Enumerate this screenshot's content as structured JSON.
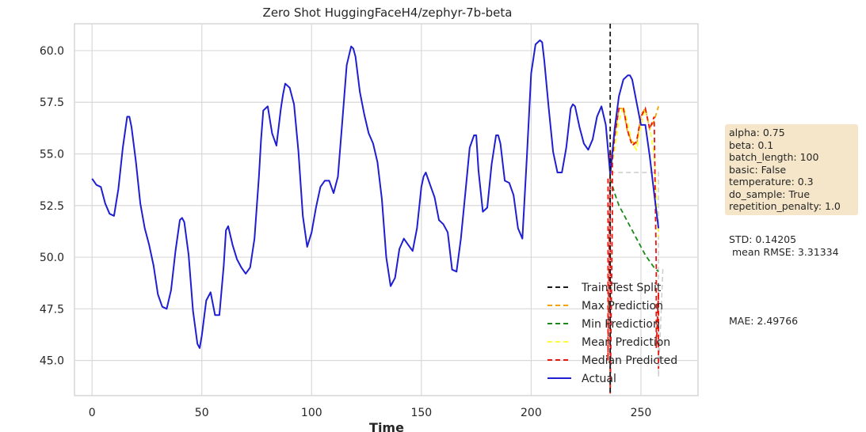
{
  "chart_data": {
    "type": "line",
    "title": "Zero Shot HuggingFaceH4/zephyr-7b-beta",
    "xlabel": "Time",
    "ylabel": "",
    "xlim": [
      -8,
      276
    ],
    "ylim": [
      43.3,
      61.3
    ],
    "x_ticks": [
      0,
      50,
      100,
      150,
      200,
      250
    ],
    "y_ticks": [
      45.0,
      47.5,
      50.0,
      52.5,
      55.0,
      57.5,
      60.0
    ],
    "y_tick_labels": [
      "45.0",
      "47.5",
      "50.0",
      "52.5",
      "55.0",
      "57.5",
      "60.0"
    ],
    "grid": true,
    "legend_position": "lower-right",
    "split_x": 236,
    "series": [
      {
        "name": "Actual",
        "color": "#1f1fd1",
        "dash": "solid",
        "x": [
          0,
          2,
          4,
          6,
          8,
          10,
          12,
          14,
          16,
          17,
          18,
          20,
          22,
          24,
          26,
          28,
          30,
          32,
          34,
          36,
          38,
          40,
          41,
          42,
          44,
          46,
          48,
          49,
          50,
          52,
          54,
          56,
          58,
          60,
          61,
          62,
          64,
          66,
          68,
          70,
          72,
          74,
          76,
          77,
          78,
          80,
          82,
          84,
          86,
          87,
          88,
          90,
          92,
          94,
          96,
          98,
          100,
          102,
          104,
          106,
          108,
          110,
          112,
          114,
          116,
          118,
          119,
          120,
          122,
          124,
          126,
          128,
          130,
          132,
          134,
          136,
          138,
          140,
          142,
          144,
          146,
          148,
          150,
          151,
          152,
          154,
          156,
          158,
          160,
          162,
          164,
          166,
          168,
          170,
          172,
          174,
          175,
          176,
          178,
          180,
          182,
          184,
          185,
          186,
          188,
          190,
          192,
          194,
          196,
          198,
          200,
          202,
          204,
          205,
          206,
          208,
          210,
          212,
          214,
          216,
          218,
          219,
          220,
          222,
          224,
          226,
          228,
          230,
          232,
          234,
          236,
          238,
          240,
          242,
          244,
          245,
          246,
          248,
          250,
          252,
          254,
          256,
          258
        ],
        "values": [
          53.8,
          53.5,
          53.4,
          52.6,
          52.1,
          52.0,
          53.3,
          55.3,
          56.8,
          56.8,
          56.3,
          54.6,
          52.6,
          51.4,
          50.6,
          49.6,
          48.2,
          47.6,
          47.5,
          48.4,
          50.3,
          51.8,
          51.9,
          51.7,
          50.1,
          47.4,
          45.8,
          45.6,
          46.2,
          47.9,
          48.3,
          47.2,
          47.2,
          49.6,
          51.3,
          51.5,
          50.6,
          49.9,
          49.5,
          49.2,
          49.5,
          50.9,
          53.9,
          55.7,
          57.1,
          57.3,
          56.0,
          55.4,
          57.2,
          57.9,
          58.4,
          58.2,
          57.4,
          55.1,
          52.0,
          50.5,
          51.2,
          52.4,
          53.4,
          53.7,
          53.7,
          53.1,
          53.9,
          56.6,
          59.3,
          60.2,
          60.1,
          59.7,
          58.0,
          56.9,
          56.0,
          55.5,
          54.6,
          52.8,
          50.0,
          48.6,
          49.0,
          50.4,
          50.9,
          50.6,
          50.3,
          51.4,
          53.4,
          53.9,
          54.1,
          53.5,
          52.9,
          51.8,
          51.6,
          51.2,
          49.4,
          49.3,
          50.9,
          53.1,
          55.3,
          55.9,
          55.9,
          54.2,
          52.2,
          52.4,
          54.5,
          55.9,
          55.9,
          55.5,
          53.7,
          53.6,
          53.0,
          51.4,
          50.9,
          54.8,
          58.9,
          60.3,
          60.5,
          60.4,
          59.5,
          57.2,
          55.1,
          54.1,
          54.1,
          55.3,
          57.2,
          57.4,
          57.3,
          56.3,
          55.5,
          55.2,
          55.7,
          56.8,
          57.3,
          56.4,
          54.0,
          56.2,
          57.8,
          58.6,
          58.8,
          58.8,
          58.6,
          57.5,
          56.4,
          56.4,
          54.9,
          53.1,
          51.4
        ]
      },
      {
        "name": "Train-Test Split",
        "color": "#1a1a1a",
        "dash": "dashed"
      },
      {
        "name": "Max Prediction",
        "color": "#f5a300",
        "dash": "dashed",
        "x": [
          236,
          238,
          240,
          242,
          244,
          246,
          248,
          250,
          252,
          254,
          256,
          258
        ],
        "values": [
          54.5,
          55.9,
          57.2,
          57.2,
          56.0,
          55.6,
          55.4,
          56.9,
          57.2,
          56.2,
          56.6,
          57.3
        ]
      },
      {
        "name": "Min Prediction",
        "color": "#1a8a1a",
        "dash": "dashed",
        "x": [
          236,
          238,
          240,
          242,
          244,
          246,
          248,
          250,
          252,
          254,
          256,
          258
        ],
        "values": [
          53.8,
          53.1,
          52.5,
          52.1,
          51.7,
          51.3,
          50.9,
          50.5,
          50.1,
          49.8,
          49.5,
          49.3
        ]
      },
      {
        "name": "Mean Prediction",
        "color": "#ffff33",
        "dash": "dashed",
        "x": [
          236,
          238,
          240,
          242,
          244,
          246,
          248,
          250,
          252,
          254,
          256,
          258
        ],
        "values": [
          54.0,
          55.2,
          56.6,
          57.3,
          56.5,
          55.5,
          55.2,
          56.4,
          57.2,
          56.3,
          55.0,
          51.0
        ]
      },
      {
        "name": "Median Predicted",
        "color": "#e8170e",
        "dash": "dashed",
        "x": [
          235,
          235,
          236,
          236,
          237,
          237,
          238,
          240,
          242,
          244,
          246,
          248,
          250,
          252,
          254,
          256,
          257,
          257,
          258,
          258
        ],
        "values": [
          53.8,
          45.0,
          55.2,
          43.4,
          52.0,
          54.7,
          55.8,
          57.2,
          57.2,
          56.1,
          55.4,
          55.6,
          56.8,
          57.2,
          56.2,
          56.8,
          49.5,
          45.6,
          48.3,
          44.6
        ]
      }
    ],
    "ghost_series": {
      "color": "#cccccc",
      "dash": "dashed",
      "x": [
        236,
        238,
        240,
        242,
        244,
        246,
        248,
        250,
        252,
        254,
        256,
        258,
        258,
        260
      ],
      "values": [
        54.1,
        54.1,
        54.1,
        54.1,
        54.1,
        54.1,
        54.1,
        54.1,
        54.1,
        54.1,
        54.1,
        54.1,
        44.2,
        49.5
      ]
    }
  },
  "side_panel": {
    "params": [
      "alpha: 0.75",
      "beta: 0.1",
      "batch_length: 100",
      "basic: False",
      "temperature: 0.3",
      "do_sample: True",
      "repetition_penalty: 1.0"
    ],
    "std": "STD: 0.14205",
    "rmse": " mean RMSE: 3.31334",
    "mae": "MAE: 2.49766"
  }
}
